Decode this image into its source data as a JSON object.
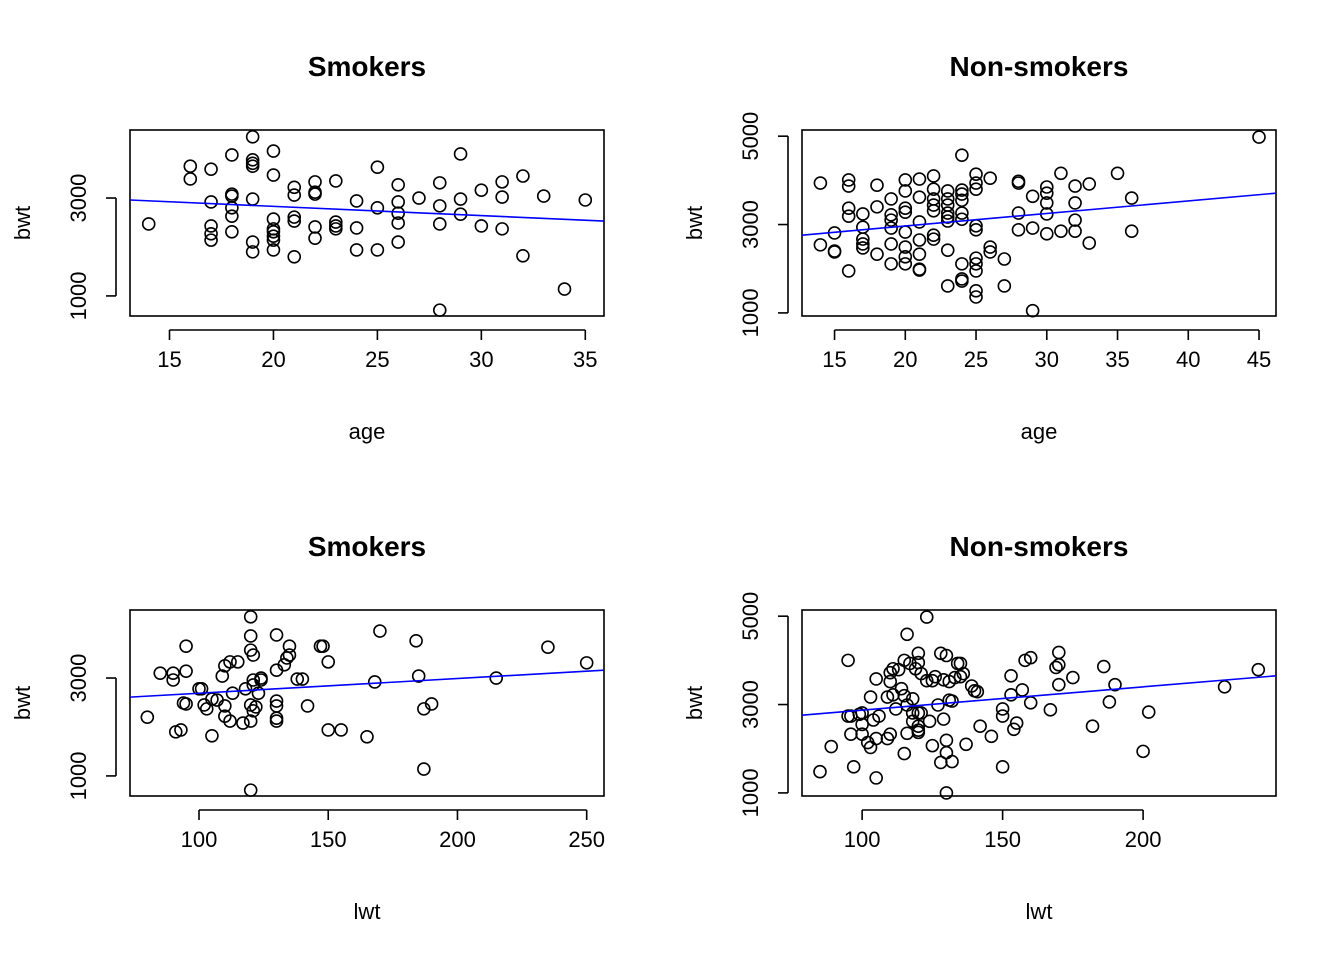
{
  "chart_data": [
    {
      "type": "scatter",
      "title": "Smokers",
      "xlabel": "age",
      "ylabel": "bwt",
      "x": [
        14,
        16,
        16,
        17,
        17,
        17,
        17,
        17,
        18,
        18,
        18,
        18,
        18,
        18,
        19,
        19,
        19,
        19,
        19,
        19,
        19,
        20,
        20,
        20,
        20,
        20,
        20,
        20,
        20,
        21,
        21,
        21,
        21,
        21,
        22,
        22,
        22,
        22,
        22,
        23,
        23,
        23,
        23,
        24,
        24,
        24,
        25,
        25,
        25,
        26,
        26,
        26,
        26,
        26,
        27,
        28,
        28,
        28,
        28,
        29,
        29,
        29,
        30,
        30,
        31,
        31,
        31,
        32,
        32,
        33,
        34,
        35
      ],
      "values": [
        2470,
        3650,
        3390,
        3590,
        2920,
        2430,
        2270,
        2140,
        3880,
        3080,
        3040,
        2800,
        2630,
        2310,
        4250,
        3780,
        3710,
        3650,
        2980,
        2100,
        1900,
        3960,
        3470,
        2570,
        2370,
        2310,
        2220,
        2140,
        1940,
        3220,
        3060,
        2610,
        2530,
        1800,
        3330,
        3120,
        3080,
        2410,
        2180,
        3350,
        2510,
        2430,
        2370,
        2940,
        2390,
        1940,
        3630,
        2800,
        1940,
        3270,
        2920,
        2690,
        2490,
        2100,
        3000,
        3310,
        2840,
        2470,
        710,
        3900,
        2980,
        2670,
        3160,
        2430,
        3330,
        3020,
        2370,
        3450,
        1820,
        3040,
        1140,
        2960
      ],
      "color": "#000000",
      "fit_line": {
        "x": [
          13.1,
          35.9
        ],
        "y": [
          2960,
          2530
        ],
        "color": "#0000ff"
      },
      "xlim": [
        13.1,
        35.9
      ],
      "ylim": [
        590,
        4390
      ],
      "xticks": [
        15,
        20,
        25,
        30,
        35
      ],
      "yticks": [
        1000,
        3000
      ]
    },
    {
      "type": "scatter",
      "title": "Non-smokers",
      "xlabel": "age",
      "ylabel": "bwt",
      "x": [
        14,
        14,
        15,
        15,
        15,
        16,
        16,
        16,
        16,
        16,
        17,
        17,
        17,
        17,
        17,
        18,
        18,
        18,
        19,
        19,
        19,
        19,
        19,
        19,
        20,
        20,
        20,
        20,
        20,
        20,
        20,
        20,
        21,
        21,
        21,
        21,
        21,
        21,
        21,
        22,
        22,
        22,
        22,
        22,
        22,
        22,
        23,
        23,
        23,
        23,
        23,
        23,
        23,
        23,
        24,
        24,
        24,
        24,
        24,
        24,
        24,
        24,
        24,
        25,
        25,
        25,
        25,
        25,
        25,
        25,
        25,
        25,
        25,
        26,
        26,
        26,
        27,
        27,
        28,
        28,
        28,
        28,
        29,
        29,
        29,
        30,
        30,
        30,
        30,
        30,
        31,
        31,
        32,
        32,
        32,
        32,
        33,
        33,
        35,
        36,
        36,
        45
      ],
      "values": [
        3940,
        2540,
        2810,
        2400,
        2380,
        4010,
        3870,
        3370,
        3190,
        1950,
        3240,
        2940,
        2670,
        2560,
        2470,
        3890,
        3400,
        2330,
        3580,
        3220,
        3100,
        2920,
        2560,
        2110,
        4010,
        3760,
        3370,
        3280,
        2830,
        2490,
        2270,
        2110,
        4030,
        3620,
        3060,
        2650,
        2330,
        1990,
        1970,
        4100,
        3800,
        3580,
        3440,
        3310,
        2760,
        2670,
        3760,
        3580,
        3440,
        3260,
        3170,
        3080,
        2420,
        1610,
        4570,
        3780,
        3690,
        3550,
        3260,
        3120,
        2110,
        1770,
        1720,
        4140,
        3940,
        3800,
        2970,
        2880,
        2240,
        2110,
        1950,
        1500,
        1360,
        4050,
        2490,
        2380,
        2220,
        1610,
        3980,
        3940,
        3260,
        2880,
        3640,
        2920,
        1050,
        3850,
        3710,
        3490,
        3240,
        2790,
        4160,
        2850,
        3870,
        3490,
        3100,
        2850,
        3920,
        2580,
        4160,
        3600,
        2850,
        4980
      ],
      "color": "#000000",
      "fit_line": {
        "x": [
          12.7,
          46.2
        ],
        "y": [
          2760,
          3710
        ],
        "color": "#0000ff"
      },
      "xlim": [
        12.7,
        46.2
      ],
      "ylim": [
        930,
        5140
      ],
      "xticks": [
        15,
        20,
        25,
        30,
        35,
        40,
        45
      ],
      "yticks": [
        1000,
        3000,
        5000
      ]
    },
    {
      "type": "scatter",
      "title": "Smokers",
      "xlabel": "lwt",
      "ylabel": "bwt",
      "x": [
        80,
        85,
        90,
        90,
        91,
        93,
        94,
        95,
        95,
        95,
        100,
        101,
        102,
        103,
        105,
        105,
        107,
        109,
        110,
        110,
        110,
        112,
        112,
        113,
        115,
        117,
        118,
        120,
        120,
        120,
        120,
        120,
        121,
        121,
        121,
        121,
        122,
        123,
        124,
        124,
        130,
        130,
        130,
        130,
        130,
        130,
        133,
        134,
        135,
        135,
        138,
        140,
        142,
        147,
        148,
        150,
        150,
        155,
        165,
        168,
        170,
        184,
        185,
        187,
        187,
        190,
        215,
        235,
        250,
        120
      ],
      "values": [
        2200,
        3100,
        3100,
        2960,
        1900,
        1940,
        2490,
        2470,
        3650,
        3140,
        2780,
        2780,
        2450,
        2370,
        1820,
        2570,
        2550,
        3040,
        3250,
        2430,
        2220,
        3330,
        2120,
        2690,
        3330,
        2080,
        2780,
        2450,
        2120,
        4250,
        3860,
        3570,
        3470,
        2960,
        2860,
        2330,
        2410,
        2690,
        2960,
        3000,
        3880,
        3160,
        2530,
        2430,
        2180,
        2120,
        3270,
        3410,
        3650,
        3470,
        2980,
        2980,
        2430,
        3650,
        3650,
        1940,
        3330,
        1940,
        1800,
        2920,
        3960,
        3760,
        3040,
        2370,
        1140,
        2470,
        3000,
        3630,
        3310,
        710
      ],
      "color": "#000000",
      "fit_line": {
        "x": [
          73.3,
          256.7
        ],
        "y": [
          2610,
          3160
        ],
        "color": "#0000ff"
      },
      "xlim": [
        73.3,
        256.7
      ],
      "ylim": [
        590,
        4390
      ],
      "xticks": [
        100,
        150,
        200,
        250
      ],
      "yticks": [
        1000,
        3000
      ]
    },
    {
      "type": "scatter",
      "title": "Non-smokers",
      "xlabel": "lwt",
      "ylabel": "bwt",
      "x": [
        85,
        89,
        95,
        95,
        96,
        96,
        97,
        99,
        100,
        100,
        100,
        102,
        103,
        103,
        104,
        105,
        105,
        105,
        106,
        109,
        109,
        110,
        110,
        110,
        111,
        111,
        112,
        113,
        114,
        115,
        115,
        115,
        116,
        116,
        116,
        117,
        118,
        118,
        118,
        119,
        120,
        120,
        120,
        120,
        120,
        120,
        121,
        121,
        123,
        123,
        124,
        125,
        125,
        126,
        127,
        128,
        128,
        129,
        129,
        130,
        130,
        130,
        130,
        131,
        131,
        132,
        132,
        133,
        134,
        135,
        135,
        136,
        137,
        139,
        140,
        141,
        142,
        146,
        150,
        150,
        150,
        153,
        153,
        154,
        155,
        157,
        158,
        160,
        160,
        167,
        169,
        170,
        170,
        170,
        175,
        182,
        186,
        188,
        190,
        200,
        202,
        229,
        241
      ],
      "values": [
        1480,
        2050,
        4000,
        2740,
        2740,
        2330,
        1590,
        2780,
        2330,
        2810,
        2550,
        2140,
        2030,
        3170,
        2650,
        3580,
        2230,
        1340,
        2740,
        2230,
        3170,
        3720,
        3520,
        2330,
        3810,
        3220,
        2900,
        3790,
        3360,
        3200,
        1890,
        4000,
        2990,
        4590,
        2350,
        3930,
        2620,
        3130,
        2810,
        3810,
        2420,
        2370,
        4160,
        3950,
        2810,
        2510,
        3700,
        2810,
        3540,
        4980,
        2620,
        3540,
        2070,
        3630,
        2990,
        1690,
        4160,
        2670,
        3560,
        4110,
        2190,
        1910,
        1000,
        3520,
        3100,
        1710,
        3080,
        3610,
        3930,
        3630,
        3930,
        3700,
        2100,
        3420,
        3310,
        3290,
        2510,
        2280,
        2900,
        2740,
        1590,
        3220,
        3650,
        2440,
        2580,
        3330,
        4000,
        3040,
        4060,
        2880,
        3840,
        3900,
        4180,
        3450,
        3610,
        2510,
        3860,
        3060,
        3450,
        1940,
        2830,
        3400,
        3790
      ],
      "color": "#000000",
      "fit_line": {
        "x": [
          78.6,
          247.3
        ],
        "y": [
          2760,
          3650
        ],
        "color": "#0000ff"
      },
      "xlim": [
        78.6,
        247.3
      ],
      "ylim": [
        930,
        5140
      ],
      "xticks": [
        100,
        150,
        200
      ],
      "yticks": [
        1000,
        3000,
        5000
      ]
    }
  ]
}
